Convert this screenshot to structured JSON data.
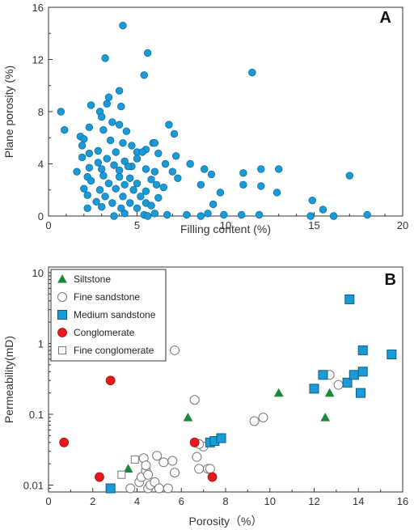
{
  "chart_data": [
    {
      "panel": "A",
      "type": "scatter",
      "xlabel": "Filling content (%)",
      "ylabel": "Plane porosity (%)",
      "xlim": [
        0,
        20
      ],
      "ylim": [
        0,
        16
      ],
      "xticks": [
        "0",
        "5",
        "10",
        "15",
        "20"
      ],
      "yticks": [
        "0",
        "4",
        "8",
        "12",
        "16"
      ],
      "marker_color": "#1a9bd7",
      "points": [
        [
          4.2,
          14.6
        ],
        [
          5.6,
          12.5
        ],
        [
          3.2,
          12.1
        ],
        [
          5.4,
          10.8
        ],
        [
          11.5,
          11.0
        ],
        [
          4.0,
          9.6
        ],
        [
          0.7,
          8.0
        ],
        [
          2.4,
          8.5
        ],
        [
          3.3,
          8.6
        ],
        [
          3.4,
          9.1
        ],
        [
          2.9,
          8.0
        ],
        [
          4.1,
          8.4
        ],
        [
          0.9,
          6.6
        ],
        [
          1.8,
          6.1
        ],
        [
          2.3,
          6.8
        ],
        [
          3.0,
          7.6
        ],
        [
          3.6,
          7.2
        ],
        [
          3.1,
          6.6
        ],
        [
          4.4,
          6.5
        ],
        [
          4.0,
          7.0
        ],
        [
          6.8,
          7.0
        ],
        [
          7.1,
          6.3
        ],
        [
          2.0,
          5.9
        ],
        [
          3.5,
          5.8
        ],
        [
          4.7,
          5.4
        ],
        [
          5.5,
          5.1
        ],
        [
          5.9,
          5.6
        ],
        [
          6.0,
          5.6
        ],
        [
          1.9,
          5.4
        ],
        [
          2.8,
          5.0
        ],
        [
          3.8,
          4.9
        ],
        [
          4.2,
          5.6
        ],
        [
          5.0,
          4.9
        ],
        [
          5.3,
          4.9
        ],
        [
          2.3,
          4.8
        ],
        [
          3.3,
          4.4
        ],
        [
          4.3,
          4.2
        ],
        [
          5.0,
          4.4
        ],
        [
          6.2,
          4.8
        ],
        [
          7.2,
          4.6
        ],
        [
          1.9,
          4.5
        ],
        [
          2.8,
          4.1
        ],
        [
          3.7,
          3.9
        ],
        [
          4.7,
          3.8
        ],
        [
          6.6,
          4.0
        ],
        [
          8.0,
          4.0
        ],
        [
          1.6,
          3.4
        ],
        [
          2.3,
          3.7
        ],
        [
          3.0,
          3.6
        ],
        [
          4.0,
          3.5
        ],
        [
          4.5,
          3.8
        ],
        [
          5.5,
          3.6
        ],
        [
          6.0,
          3.4
        ],
        [
          7.0,
          3.4
        ],
        [
          8.8,
          3.6
        ],
        [
          9.2,
          3.2
        ],
        [
          11.0,
          3.3
        ],
        [
          12.0,
          3.6
        ],
        [
          13.0,
          3.6
        ],
        [
          17.0,
          3.1
        ],
        [
          2.2,
          3.0
        ],
        [
          3.1,
          3.1
        ],
        [
          4.0,
          3.0
        ],
        [
          4.6,
          2.9
        ],
        [
          5.8,
          2.8
        ],
        [
          7.3,
          2.9
        ],
        [
          2.4,
          2.7
        ],
        [
          3.4,
          2.5
        ],
        [
          4.3,
          2.4
        ],
        [
          5.0,
          2.5
        ],
        [
          6.1,
          2.4
        ],
        [
          8.6,
          2.4
        ],
        [
          11.0,
          2.4
        ],
        [
          12.0,
          2.3
        ],
        [
          2.0,
          2.1
        ],
        [
          2.9,
          2.0
        ],
        [
          3.8,
          2.1
        ],
        [
          4.8,
          2.0
        ],
        [
          5.5,
          1.9
        ],
        [
          6.5,
          2.2
        ],
        [
          9.7,
          1.8
        ],
        [
          12.9,
          1.8
        ],
        [
          2.2,
          1.6
        ],
        [
          3.2,
          1.5
        ],
        [
          4.2,
          1.5
        ],
        [
          5.2,
          1.5
        ],
        [
          6.2,
          1.4
        ],
        [
          2.7,
          1.1
        ],
        [
          3.6,
          1.0
        ],
        [
          4.6,
          1.0
        ],
        [
          5.5,
          1.0
        ],
        [
          14.9,
          1.2
        ],
        [
          2.2,
          0.6
        ],
        [
          3.0,
          0.7
        ],
        [
          4.1,
          0.6
        ],
        [
          5.0,
          0.6
        ],
        [
          5.8,
          0.8
        ],
        [
          9.3,
          0.9
        ],
        [
          15.5,
          0.5
        ],
        [
          4.3,
          0.2
        ],
        [
          5.4,
          0.1
        ],
        [
          6.0,
          0.2
        ],
        [
          6.7,
          0.1
        ],
        [
          7.8,
          0.1
        ],
        [
          8.6,
          0.0
        ],
        [
          9.0,
          0.2
        ],
        [
          9.9,
          0.1
        ],
        [
          10.9,
          0.1
        ],
        [
          11.9,
          0.1
        ],
        [
          14.8,
          0.0
        ],
        [
          16.1,
          0.0
        ],
        [
          18.0,
          0.1
        ],
        [
          3.7,
          0.0
        ],
        [
          5.6,
          0.0
        ]
      ]
    },
    {
      "panel": "B",
      "type": "scatter",
      "xlabel": "Porosity（%）",
      "ylabel": "Permeability(mD)",
      "xlim": [
        0,
        16
      ],
      "ylim": [
        0.008,
        12
      ],
      "yscale": "log",
      "xticks": [
        "0",
        "2",
        "4",
        "6",
        "8",
        "10",
        "12",
        "14",
        "16"
      ],
      "yticks": [
        {
          "value": 0.01,
          "label": "0.01"
        },
        {
          "value": 0.1,
          "label": "0.1"
        },
        {
          "value": 1,
          "label": "1"
        },
        {
          "value": 10,
          "label": "10"
        }
      ],
      "legend_position": "top-left",
      "series": [
        {
          "name": "Siltstone",
          "marker": "triangle",
          "color": "#1a8a3a",
          "points": [
            [
              3.6,
              0.017
            ],
            [
              6.3,
              0.09
            ],
            [
              10.4,
              0.2
            ],
            [
              12.5,
              0.09
            ],
            [
              12.7,
              0.2
            ]
          ]
        },
        {
          "name": "Fine sandstone",
          "marker": "open-circle",
          "color": "#777777",
          "points": [
            [
              5.7,
              0.8
            ],
            [
              6.6,
              0.16
            ],
            [
              9.3,
              0.08
            ],
            [
              9.7,
              0.09
            ],
            [
              13.1,
              0.26
            ],
            [
              12.7,
              0.36
            ],
            [
              3.7,
              0.009
            ],
            [
              4.1,
              0.011
            ],
            [
              4.2,
              0.013
            ],
            [
              4.3,
              0.024
            ],
            [
              4.4,
              0.016
            ],
            [
              4.4,
              0.019
            ],
            [
              4.5,
              0.014
            ],
            [
              4.5,
              0.009
            ],
            [
              4.6,
              0.01
            ],
            [
              4.8,
              0.011
            ],
            [
              4.9,
              0.026
            ],
            [
              5.0,
              0.009
            ],
            [
              5.2,
              0.021
            ],
            [
              5.4,
              0.009
            ],
            [
              5.6,
              0.022
            ],
            [
              5.7,
              0.015
            ],
            [
              6.7,
              0.025
            ],
            [
              6.8,
              0.017
            ],
            [
              7.0,
              0.035
            ],
            [
              7.2,
              0.017
            ],
            [
              7.3,
              0.017
            ],
            [
              6.8,
              0.038
            ]
          ]
        },
        {
          "name": "Medium sandstone",
          "marker": "square",
          "color": "#1a9bd7",
          "points": [
            [
              2.8,
              0.009
            ],
            [
              7.3,
              0.04
            ],
            [
              7.5,
              0.042
            ],
            [
              7.8,
              0.046
            ],
            [
              12.0,
              0.23
            ],
            [
              12.4,
              0.36
            ],
            [
              13.5,
              0.28
            ],
            [
              13.6,
              4.2
            ],
            [
              13.8,
              0.36
            ],
            [
              14.1,
              0.2
            ],
            [
              14.2,
              0.8
            ],
            [
              14.2,
              0.4
            ],
            [
              15.5,
              0.7
            ]
          ]
        },
        {
          "name": "Conglomerate",
          "marker": "circle",
          "color": "#e8191c",
          "points": [
            [
              0.7,
              0.04
            ],
            [
              2.3,
              0.013
            ],
            [
              2.8,
              0.3
            ],
            [
              6.6,
              0.04
            ],
            [
              7.4,
              0.013
            ]
          ]
        },
        {
          "name": "Fine conglomerate",
          "marker": "open-square",
          "color": "#777777",
          "points": [
            [
              3.3,
              0.014
            ],
            [
              3.9,
              0.023
            ]
          ]
        }
      ]
    }
  ]
}
